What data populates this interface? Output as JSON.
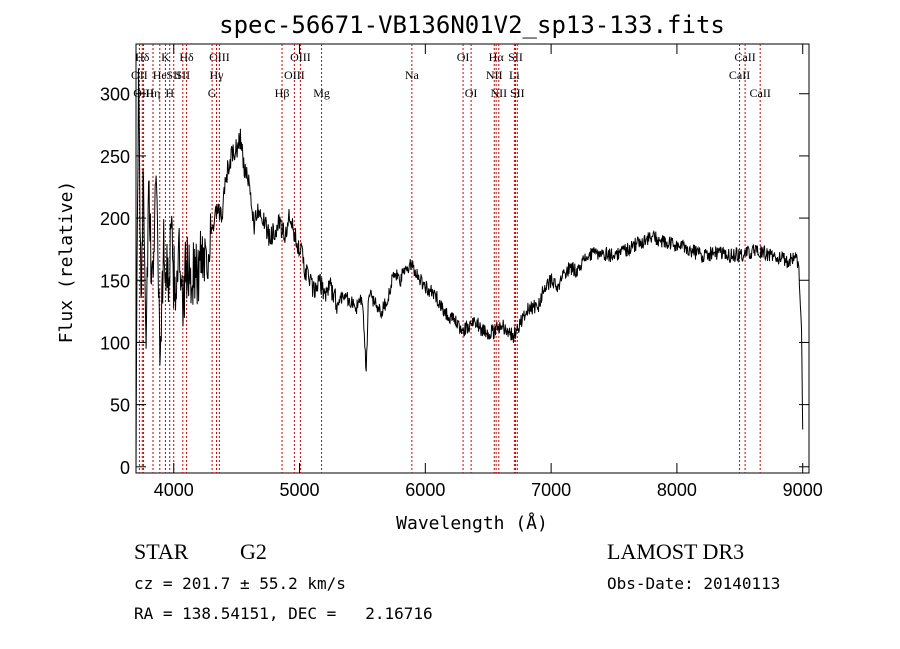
{
  "chart_data": {
    "type": "line",
    "title": "spec-56671-VB136N01V2_sp13-133.fits",
    "xlabel": "Wavelength (Å)",
    "ylabel": "Flux (relative)",
    "xlim": [
      3700,
      9050
    ],
    "ylim": [
      -5,
      340
    ],
    "xticks": [
      4000,
      5000,
      6000,
      7000,
      8000,
      9000
    ],
    "yticks": [
      0,
      50,
      100,
      150,
      200,
      250,
      300
    ],
    "grid": false,
    "series": [
      {
        "name": "flux",
        "x": [
          3700,
          3720,
          3740,
          3760,
          3780,
          3800,
          3830,
          3860,
          3890,
          3920,
          3950,
          3980,
          4010,
          4040,
          4070,
          4100,
          4130,
          4160,
          4190,
          4220,
          4260,
          4300,
          4340,
          4380,
          4420,
          4460,
          4500,
          4530,
          4560,
          4600,
          4640,
          4680,
          4720,
          4760,
          4800,
          4840,
          4880,
          4920,
          4960,
          5000,
          5040,
          5080,
          5120,
          5160,
          5200,
          5250,
          5300,
          5350,
          5400,
          5450,
          5500,
          5530,
          5550,
          5600,
          5650,
          5700,
          5750,
          5800,
          5850,
          5900,
          5950,
          6000,
          6050,
          6100,
          6150,
          6200,
          6250,
          6300,
          6350,
          6400,
          6450,
          6500,
          6550,
          6600,
          6650,
          6700,
          6750,
          6800,
          6850,
          6900,
          6950,
          7000,
          7050,
          7100,
          7150,
          7200,
          7250,
          7300,
          7400,
          7500,
          7600,
          7700,
          7800,
          7900,
          8000,
          8100,
          8200,
          8300,
          8400,
          8500,
          8600,
          8700,
          8800,
          8880,
          8940,
          8970,
          8990,
          9000
        ],
        "values": [
          20,
          305,
          150,
          230,
          110,
          215,
          140,
          250,
          90,
          175,
          150,
          180,
          140,
          175,
          120,
          165,
          150,
          160,
          150,
          175,
          170,
          185,
          205,
          200,
          235,
          250,
          255,
          265,
          240,
          225,
          195,
          210,
          195,
          185,
          190,
          195,
          185,
          200,
          185,
          178,
          160,
          150,
          140,
          148,
          140,
          145,
          130,
          140,
          133,
          128,
          135,
          75,
          140,
          132,
          125,
          135,
          155,
          150,
          160,
          162,
          152,
          145,
          140,
          135,
          125,
          120,
          115,
          110,
          112,
          118,
          110,
          108,
          108,
          115,
          110,
          105,
          115,
          125,
          128,
          130,
          145,
          150,
          142,
          155,
          160,
          158,
          165,
          170,
          172,
          170,
          175,
          180,
          185,
          180,
          178,
          175,
          170,
          172,
          170,
          170,
          173,
          172,
          168,
          165,
          170,
          160,
          110,
          30
        ]
      }
    ],
    "lines": [
      {
        "label": "Hδ",
        "x": 3750,
        "row": 0
      },
      {
        "label": "OII",
        "x": 3727,
        "row": 1
      },
      {
        "label": "OIII",
        "x": 3760,
        "row": 2
      },
      {
        "label": "Hη",
        "x": 3835,
        "row": 2
      },
      {
        "label": "He",
        "x": 3889,
        "row": 1
      },
      {
        "label": "K",
        "x": 3934,
        "row": 0
      },
      {
        "label": "H",
        "x": 3968,
        "row": 2
      },
      {
        "label": "SII",
        "x": 4000,
        "row": 1
      },
      {
        "label": "Hδ",
        "x": 4102,
        "row": 0
      },
      {
        "label": "SII",
        "x": 4072,
        "row": 1
      },
      {
        "label": "OIII",
        "x": 4363,
        "row": 0
      },
      {
        "label": "Hγ",
        "x": 4340,
        "row": 1
      },
      {
        "label": "G",
        "x": 4305,
        "row": 2
      },
      {
        "label": "Hβ",
        "x": 4861,
        "row": 2
      },
      {
        "label": "OIII",
        "x": 5007,
        "row": 0
      },
      {
        "label": "OIII",
        "x": 4959,
        "row": 1
      },
      {
        "label": "Mg",
        "x": 5175,
        "row": 2
      },
      {
        "label": "Na",
        "x": 5893,
        "row": 1
      },
      {
        "label": "OI",
        "x": 6300,
        "row": 0
      },
      {
        "label": "OI",
        "x": 6364,
        "row": 2
      },
      {
        "label": "Hα",
        "x": 6563,
        "row": 0
      },
      {
        "label": "SII",
        "x": 6717,
        "row": 0
      },
      {
        "label": "NII",
        "x": 6548,
        "row": 1
      },
      {
        "label": "Li",
        "x": 6708,
        "row": 1
      },
      {
        "label": "NII",
        "x": 6584,
        "row": 2
      },
      {
        "label": "SII",
        "x": 6731,
        "row": 2
      },
      {
        "label": "CaII",
        "x": 8542,
        "row": 0
      },
      {
        "label": "CaII",
        "x": 8498,
        "row": 1
      },
      {
        "label": "CaII",
        "x": 8662,
        "row": 2
      }
    ]
  },
  "info": {
    "class_label": "STAR",
    "subclass": "G2",
    "survey": "LAMOST DR3",
    "cz": "cz = 201.7 ± 55.2 km/s",
    "obs_date": "Obs-Date: 20140113",
    "coords": "RA = 138.54151, DEC =   2.16716"
  }
}
